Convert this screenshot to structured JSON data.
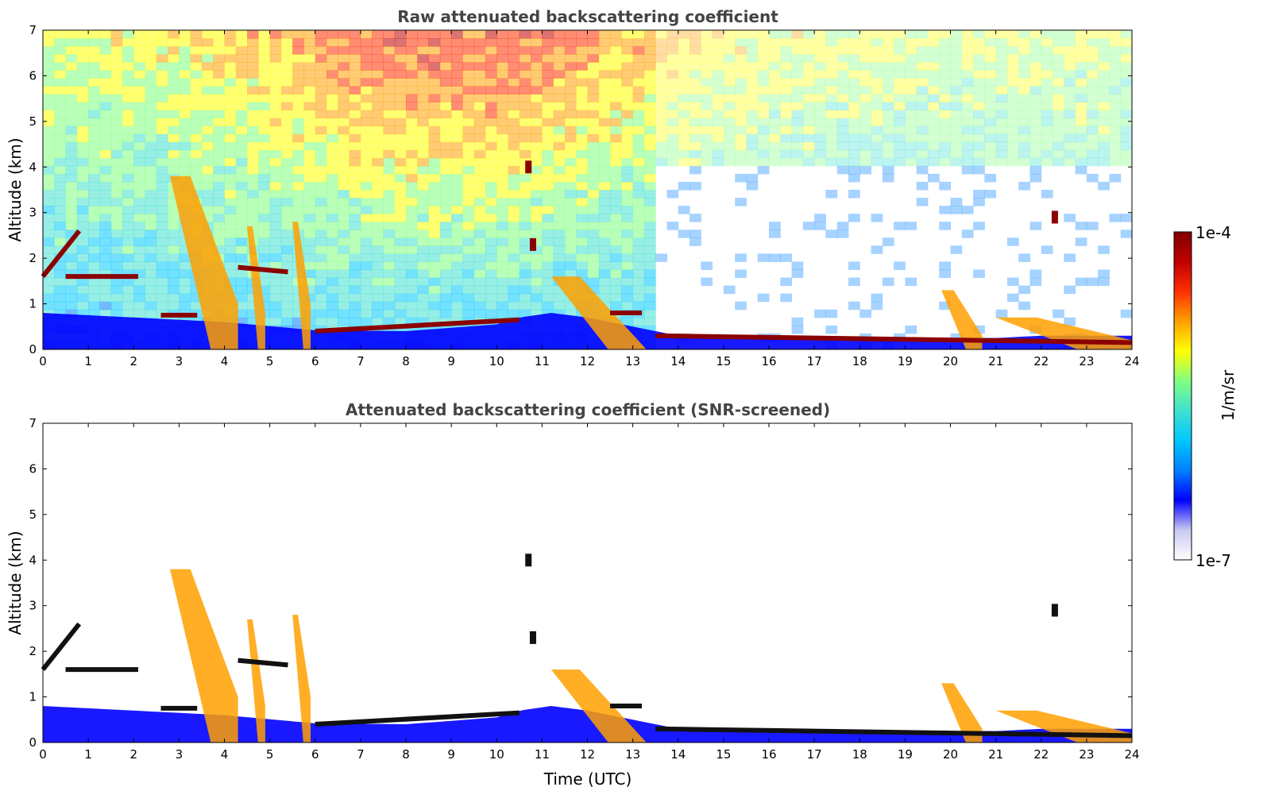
{
  "chart_data": [
    {
      "type": "heatmap",
      "title": "Raw attenuated backscattering coefficient",
      "xlabel": "",
      "ylabel": "Altitude (km)",
      "xlim": [
        0,
        24
      ],
      "ylim": [
        0,
        7
      ],
      "xticks": [
        "0",
        "1",
        "2",
        "3",
        "4",
        "5",
        "6",
        "7",
        "8",
        "9",
        "10",
        "11",
        "12",
        "13",
        "14",
        "15",
        "16",
        "17",
        "18",
        "19",
        "20",
        "21",
        "22",
        "23",
        "24"
      ],
      "yticks": [
        "0",
        "1",
        "2",
        "3",
        "4",
        "5",
        "6",
        "7"
      ],
      "noise_background": true,
      "features": {
        "boundary_layer_top_km": [
          [
            0,
            0.8
          ],
          [
            2,
            0.7
          ],
          [
            4,
            0.6
          ],
          [
            6,
            0.42
          ],
          [
            8,
            0.4
          ],
          [
            10,
            0.55
          ],
          [
            10.5,
            0.7
          ],
          [
            11.2,
            0.8
          ],
          [
            12,
            0.7
          ],
          [
            13,
            0.5
          ],
          [
            14,
            0.3
          ],
          [
            16,
            0.25
          ],
          [
            18,
            0.2
          ],
          [
            19,
            0.25
          ],
          [
            20,
            0.25
          ],
          [
            21,
            0.25
          ],
          [
            22,
            0.3
          ],
          [
            24,
            0.3
          ]
        ],
        "cloud_layers": [
          {
            "x": [
              0,
              0.8
            ],
            "y": [
              1.6,
              2.6
            ]
          },
          {
            "x": [
              0.5,
              2.1
            ],
            "y": [
              1.6,
              1.6
            ]
          },
          {
            "x": [
              2.6,
              3.4
            ],
            "y": [
              0.75,
              0.75
            ]
          },
          {
            "x": [
              4.3,
              5.4
            ],
            "y": [
              1.8,
              1.7
            ]
          },
          {
            "x": [
              6,
              10.5
            ],
            "y": [
              0.4,
              0.65
            ]
          },
          {
            "x": [
              12.5,
              13.2
            ],
            "y": [
              0.8,
              0.8
            ]
          },
          {
            "x": [
              13.5,
              24
            ],
            "y": [
              0.3,
              0.15
            ]
          }
        ],
        "aerosol_plumes": [
          {
            "x": [
              2.8,
              4.3
            ],
            "y": [
              3.8,
              1.0
            ]
          },
          {
            "x": [
              4.5,
              4.9
            ],
            "y": [
              2.7,
              0.8
            ]
          },
          {
            "x": [
              5.5,
              5.9
            ],
            "y": [
              2.8,
              1.0
            ]
          },
          {
            "x": [
              11.2,
              13.3
            ],
            "y": [
              1.6,
              0.0
            ]
          },
          {
            "x": [
              19.8,
              20.7
            ],
            "y": [
              1.3,
              0.3
            ]
          },
          {
            "x": [
              21,
              24
            ],
            "y": [
              0.7,
              0.2
            ]
          }
        ],
        "isolated_cloud": [
          {
            "x": 10.7,
            "y": 4.0
          },
          {
            "x": 10.8,
            "y": 2.3
          },
          {
            "x": 22.3,
            "y": 2.9
          }
        ]
      }
    },
    {
      "type": "heatmap",
      "title": "Attenuated backscattering coefficient (SNR-screened)",
      "xlabel": "Time (UTC)",
      "ylabel": "Altitude (km)",
      "xlim": [
        0,
        24
      ],
      "ylim": [
        0,
        7
      ],
      "xticks": [
        "0",
        "1",
        "2",
        "3",
        "4",
        "5",
        "6",
        "7",
        "8",
        "9",
        "10",
        "11",
        "12",
        "13",
        "14",
        "15",
        "16",
        "17",
        "18",
        "19",
        "20",
        "21",
        "22",
        "23",
        "24"
      ],
      "yticks": [
        "0",
        "1",
        "2",
        "3",
        "4",
        "5",
        "6",
        "7"
      ],
      "noise_background": false
    }
  ],
  "colorbar": {
    "max_label": "1e-4",
    "min_label": "1e-7",
    "units": "1/m/sr",
    "colormap": [
      "#ffffff",
      "#c8c8f0",
      "#0000ff",
      "#0080ff",
      "#00c8ff",
      "#40e0d0",
      "#80ff80",
      "#ffff00",
      "#ffa000",
      "#ff3000",
      "#c00000",
      "#800000"
    ]
  }
}
